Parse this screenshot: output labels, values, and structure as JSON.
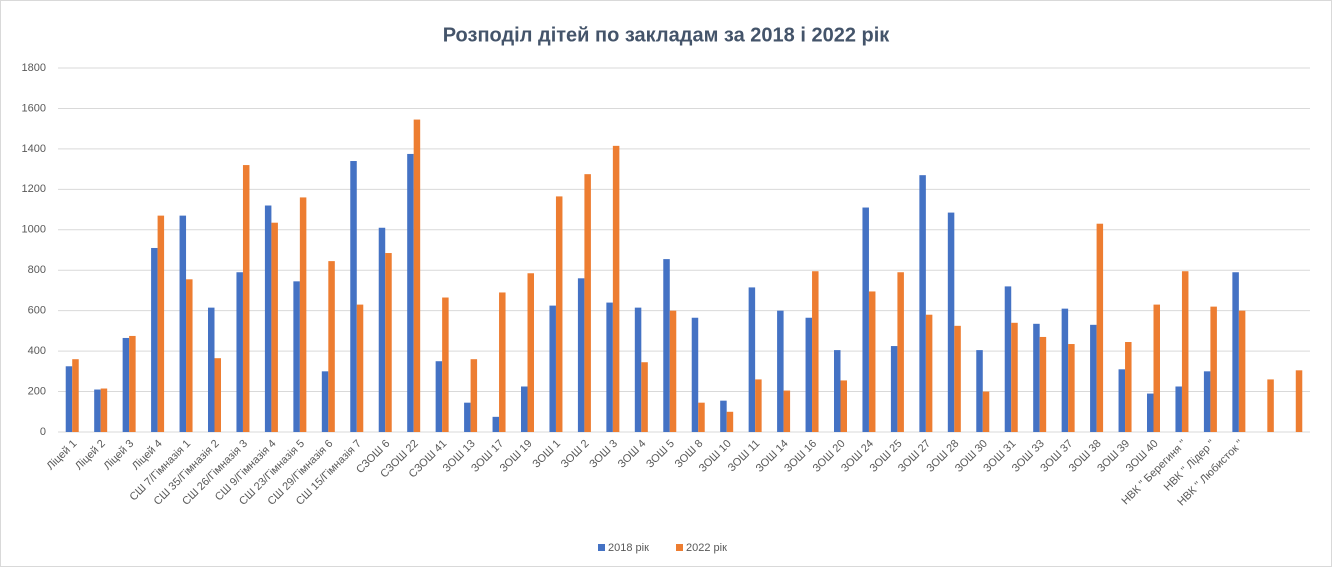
{
  "chart_data": {
    "type": "bar",
    "title": "Розподіл дітей по закладам за 2018 і 2022 рік",
    "categories": [
      "Ліцей 1",
      "Ліцей 2",
      "Ліцей 3",
      "Ліцей 4",
      "СШ 7/Гімназія 1",
      "СШ 35/Гімназія 2",
      "СШ 26/Гімназія 3",
      "СШ 9/Гімназія 4",
      "СШ 23/Гімназія 5",
      "СШ 29/Гімназія 6",
      "СШ 15/Гімназія 7",
      "СЗОШ 6",
      "СЗОШ 22",
      "СЗОШ 41",
      "ЗОШ 13",
      "ЗОШ 17",
      "ЗОШ 19",
      "ЗОШ 1",
      "ЗОШ 2",
      "ЗОШ 3",
      "ЗОШ 4",
      "ЗОШ 5",
      "ЗОШ 8",
      "ЗОШ 10",
      "ЗОШ 11",
      "ЗОШ 14",
      "ЗОШ 16",
      "ЗОШ 20",
      "ЗОШ 24",
      "ЗОШ 25",
      "ЗОШ 27",
      "ЗОШ 28",
      "ЗОШ 30",
      "ЗОШ 31",
      "ЗОШ 33",
      "ЗОШ 37",
      "ЗОШ 38",
      "ЗОШ 39",
      "ЗОШ 40",
      "НВК \" Берегиня \"",
      "НВК \" Лідер \"",
      "НВК \" Любисток \"",
      null,
      null
    ],
    "series": [
      {
        "name": "2018 рік",
        "color": "#4472c4",
        "values": [
          325,
          210,
          465,
          910,
          1070,
          615,
          790,
          1120,
          745,
          300,
          1340,
          1010,
          1375,
          350,
          145,
          75,
          225,
          625,
          760,
          640,
          615,
          855,
          565,
          155,
          715,
          600,
          565,
          405,
          1110,
          425,
          1270,
          1085,
          405,
          720,
          535,
          610,
          530,
          310,
          190,
          225,
          300,
          790,
          null,
          null
        ]
      },
      {
        "name": "2022 рік",
        "color": "#ed7d31",
        "values": [
          360,
          215,
          475,
          1070,
          755,
          365,
          1320,
          1035,
          1160,
          845,
          630,
          885,
          1545,
          665,
          360,
          690,
          785,
          1165,
          1275,
          1415,
          345,
          600,
          145,
          100,
          260,
          205,
          795,
          255,
          695,
          790,
          580,
          525,
          200,
          540,
          470,
          435,
          1030,
          445,
          630,
          795,
          620,
          600,
          260,
          305
        ]
      }
    ],
    "ylim": [
      0,
      1800
    ],
    "yticks": [
      0,
      200,
      400,
      600,
      800,
      1000,
      1200,
      1400,
      1600,
      1800
    ],
    "grid": true,
    "legend": "bottom"
  }
}
